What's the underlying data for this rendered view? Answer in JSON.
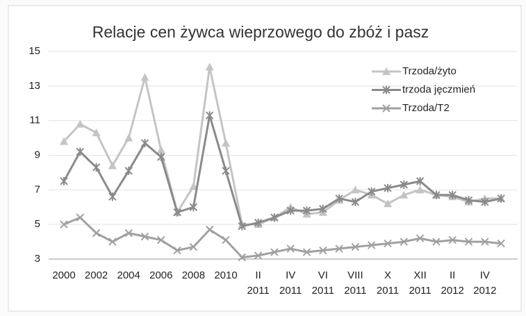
{
  "chart_data": {
    "type": "line",
    "title": "Relacje cen żywca wieprzowego do zbóż i pasz",
    "categories": [
      "2000",
      null,
      "2002",
      null,
      "2004",
      null,
      "2006",
      null,
      "2008",
      null,
      "2010",
      null,
      "II 2011",
      null,
      "IV 2011",
      null,
      "VI 2011",
      null,
      "VIII 2011",
      null,
      "X 2011",
      null,
      "XII 2011",
      null,
      "II 2012",
      null,
      "IV 2012",
      null
    ],
    "series": [
      {
        "name": "Trzoda/żyto",
        "color": "#c4c4c4",
        "marker": "triangle",
        "values": [
          9.8,
          10.8,
          10.3,
          8.4,
          10.0,
          13.5,
          9.3,
          5.7,
          7.2,
          14.1,
          9.7,
          5.0,
          5.0,
          5.4,
          6.0,
          5.6,
          5.7,
          6.4,
          7.0,
          6.7,
          6.2,
          6.7,
          7.0,
          6.7,
          6.6,
          6.3,
          6.5,
          6.5
        ]
      },
      {
        "name": "trzoda jęczmień",
        "color": "#8a8a8a",
        "marker": "star",
        "values": [
          7.5,
          9.2,
          8.3,
          6.6,
          8.1,
          9.7,
          8.9,
          5.7,
          6.0,
          11.3,
          8.1,
          4.9,
          5.1,
          5.4,
          5.8,
          5.8,
          5.9,
          6.5,
          6.3,
          6.9,
          7.1,
          7.3,
          7.5,
          6.7,
          6.7,
          6.4,
          6.3,
          6.5
        ]
      },
      {
        "name": "Trzoda/T2",
        "color": "#a0a0a0",
        "marker": "x",
        "values": [
          5.0,
          5.4,
          4.5,
          4.0,
          4.5,
          4.3,
          4.1,
          3.5,
          3.7,
          4.7,
          4.1,
          3.1,
          3.2,
          3.4,
          3.6,
          3.4,
          3.5,
          3.6,
          3.7,
          3.8,
          3.9,
          4.0,
          4.2,
          4.0,
          4.1,
          4.0,
          4.0,
          3.9
        ]
      }
    ],
    "ylim": [
      3,
      15
    ],
    "yticks": [
      3,
      5,
      7,
      9,
      11,
      13,
      15
    ],
    "grid": true,
    "legend": "top-right"
  }
}
